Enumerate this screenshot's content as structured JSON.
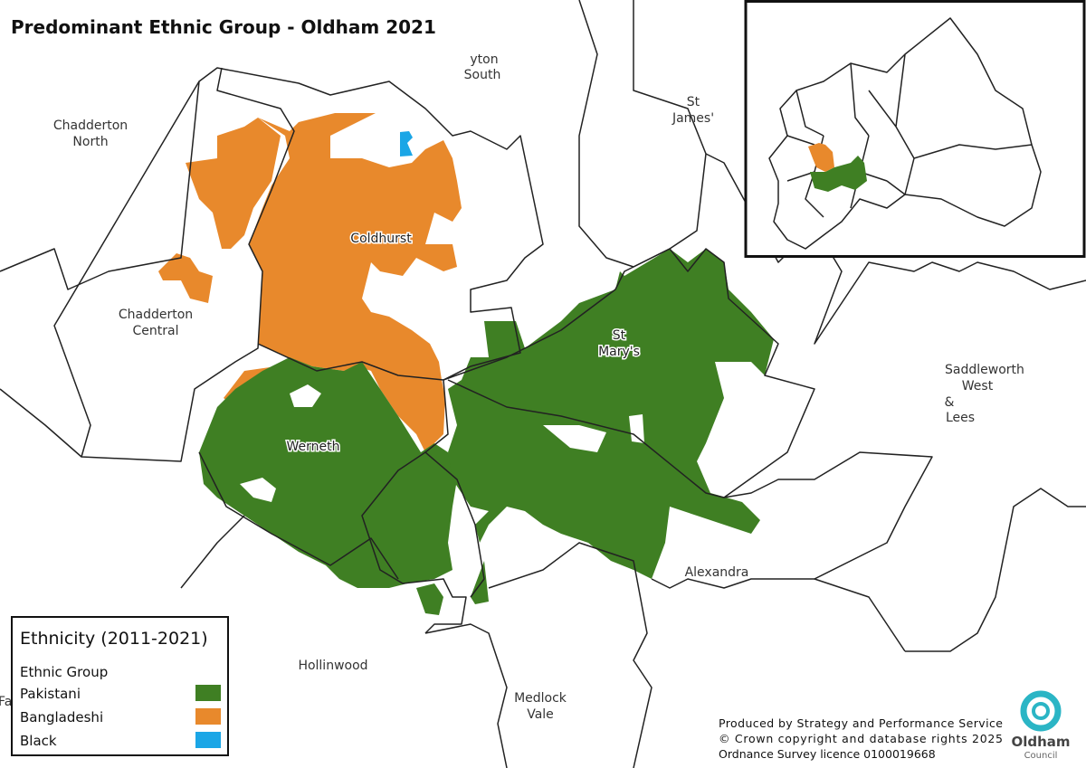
{
  "header": {
    "title": "Predominant Ethnic Group - Oldham 2021"
  },
  "map": {
    "ward_labels": [
      {
        "lines": [
          "yton",
          "South"
        ]
      },
      {
        "lines": [
          "St",
          "James'"
        ]
      },
      {
        "lines": [
          "Chadderton",
          "North"
        ]
      },
      {
        "lines": [
          "Coldhurst"
        ]
      },
      {
        "lines": [
          "Chadderton",
          "Central"
        ]
      },
      {
        "lines": [
          "St",
          "Mary's"
        ]
      },
      {
        "lines": [
          "Saddleworth",
          "West",
          "&",
          "Lees"
        ]
      },
      {
        "lines": [
          "Werneth"
        ]
      },
      {
        "lines": [
          "Alexandra"
        ]
      },
      {
        "lines": [
          "Hollinwood"
        ]
      },
      {
        "lines": [
          "Medlock",
          "Vale"
        ]
      },
      {
        "lines": [
          "Fa"
        ]
      }
    ]
  },
  "legend": {
    "title": "Ethnicity (2011-2021)",
    "group_label": "Ethnic Group",
    "items": [
      {
        "label": "Pakistani",
        "color": "#3f7f23"
      },
      {
        "label": "Bangladeshi",
        "color": "#e8892c"
      },
      {
        "label": "Black",
        "color": "#1ba6e6"
      }
    ]
  },
  "credits": {
    "lines": [
      "Produced by Strategy and Performance Service",
      "© Crown copyright and database rights 2025",
      "Ordnance Survey licence 0100019668"
    ]
  },
  "logo": {
    "name": "Oldham",
    "subtitle": "Council"
  }
}
